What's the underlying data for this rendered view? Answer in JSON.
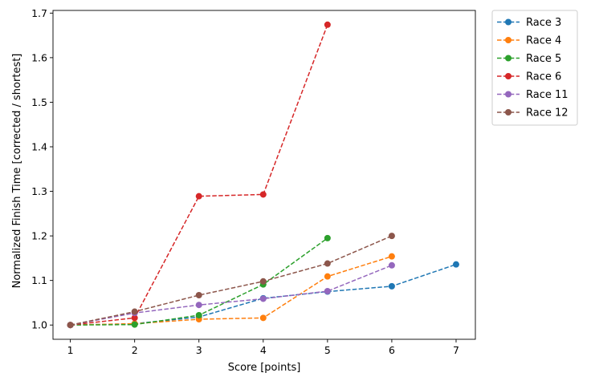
{
  "chart_data": {
    "type": "line",
    "title": "",
    "xlabel": "Score [points]",
    "ylabel": "Normalized Finish Time [corrected / shortest]",
    "xlim": [
      0.73,
      7.3
    ],
    "ylim": [
      0.968,
      1.706
    ],
    "xticks": [
      1,
      2,
      3,
      4,
      5,
      6,
      7
    ],
    "yticks": [
      1.0,
      1.1,
      1.2,
      1.3,
      1.4,
      1.5,
      1.6,
      1.7
    ],
    "grid": false,
    "legend": "outside-top-right",
    "series": [
      {
        "name": "Race 3",
        "color": "#1f77b4",
        "x": [
          1,
          2,
          3,
          4,
          5,
          6,
          7
        ],
        "y": [
          1.0,
          1.003,
          1.018,
          1.06,
          1.075,
          1.087,
          1.136
        ]
      },
      {
        "name": "Race 4",
        "color": "#ff7f0e",
        "x": [
          1,
          2,
          3,
          4,
          5,
          6
        ],
        "y": [
          1.0,
          1.003,
          1.013,
          1.016,
          1.109,
          1.154
        ]
      },
      {
        "name": "Race 5",
        "color": "#2ca02c",
        "x": [
          1,
          2,
          3,
          4,
          5
        ],
        "y": [
          1.0,
          1.001,
          1.022,
          1.091,
          1.195
        ]
      },
      {
        "name": "Race 6",
        "color": "#d62728",
        "x": [
          1,
          2,
          3,
          4,
          5
        ],
        "y": [
          1.0,
          1.016,
          1.289,
          1.293,
          1.674
        ]
      },
      {
        "name": "Race 11",
        "color": "#9467bd",
        "x": [
          1,
          2,
          3,
          4,
          5,
          6
        ],
        "y": [
          1.0,
          1.027,
          1.045,
          1.059,
          1.076,
          1.134
        ]
      },
      {
        "name": "Race 12",
        "color": "#8c564b",
        "x": [
          1,
          2,
          3,
          4,
          5,
          6
        ],
        "y": [
          1.0,
          1.03,
          1.067,
          1.098,
          1.138,
          1.2
        ]
      }
    ]
  }
}
